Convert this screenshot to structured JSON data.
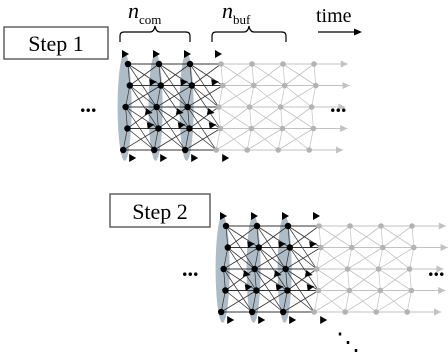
{
  "labels": {
    "step1": "Step 1",
    "step2": "Step 2",
    "n_com_base": "n",
    "n_com_sub": "com",
    "n_buf_base": "n",
    "n_buf_sub": "buf",
    "time": "time",
    "ellipsis": "...",
    "ellipsis_down": "⋱"
  },
  "structure": {
    "committed_columns": 3,
    "buffer_columns": 4,
    "rows": 5
  },
  "colors": {
    "committed_node": "#000000",
    "buffer_node": "#b3b3b3",
    "committed_edge": "#333333",
    "buffer_edge": "#c2c2c2",
    "ellipse_fill": "#9fb0bd",
    "box_stroke": "#555555"
  }
}
